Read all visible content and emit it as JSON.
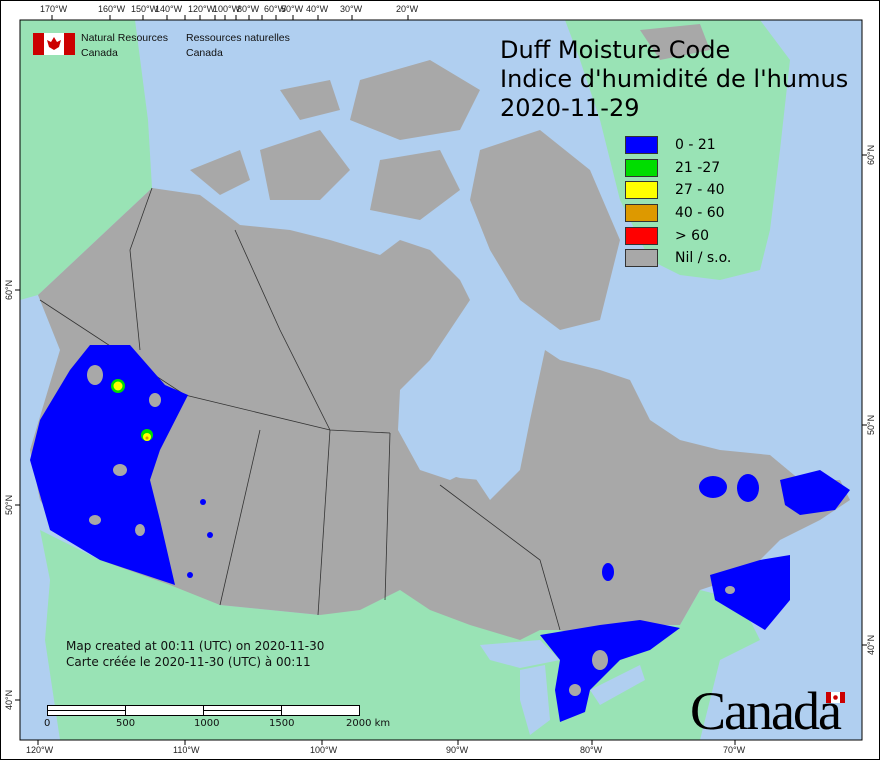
{
  "header": {
    "org_en": [
      "Natural Resources",
      "Canada"
    ],
    "org_fr": [
      "Ressources naturelles",
      "Canada"
    ]
  },
  "title": {
    "line1": "Duff Moisture Code",
    "line2": "Indice d'humidité de l'humus",
    "date": "2020-11-29"
  },
  "legend": [
    {
      "label": "0 - 21",
      "color": "#0000ff"
    },
    {
      "label": "21 -27",
      "color": "#00dd00"
    },
    {
      "label": "27 - 40",
      "color": "#ffff00"
    },
    {
      "label": "40 - 60",
      "color": "#dd9900"
    },
    {
      "label": "> 60",
      "color": "#ff0000"
    },
    {
      "label": "Nil / s.o.",
      "color": "#a8a8a8"
    }
  ],
  "axes": {
    "top": [
      "170°W",
      "160°W",
      "150°W",
      "140°W",
      "120°W",
      "100°W",
      "80°W",
      "60°W",
      "50°W",
      "40°W",
      "30°W",
      "20°W"
    ],
    "bottom": [
      "120°W",
      "110°W",
      "100°W",
      "90°W",
      "80°W",
      "70°W"
    ],
    "left": [
      "60°N",
      "50°N",
      "40°N"
    ],
    "right": [
      "60°N",
      "50°N",
      "40°N"
    ]
  },
  "footer": {
    "created_en": "Map created at 00:11 (UTC) on 2020-11-30",
    "created_fr": "Carte créée le 2020-11-30 (UTC) à 00:11",
    "scale_labels": [
      "0",
      "500",
      "1000",
      "1500",
      "2000  km"
    ],
    "wordmark": "Canada"
  },
  "colors": {
    "ocean": "#b0cff0",
    "foreign_land": "#99e3b5",
    "no_data": "#a8a8a8",
    "flag_red": "#cc0000"
  }
}
